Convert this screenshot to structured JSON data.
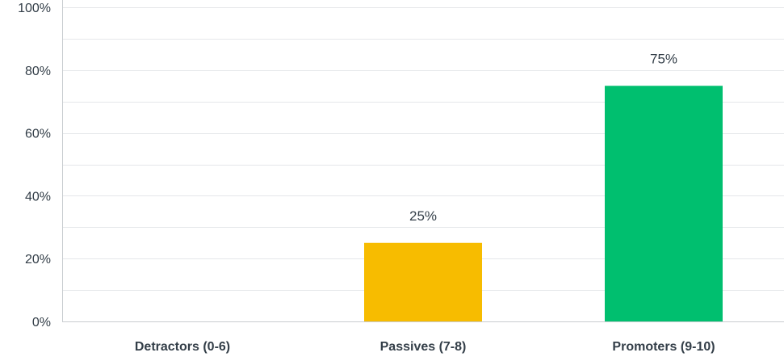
{
  "chart_data": {
    "type": "bar",
    "categories": [
      "Detractors (0-6)",
      "Passives (7-8)",
      "Promoters (9-10)"
    ],
    "values": [
      0,
      25,
      75
    ],
    "data_labels": [
      "",
      "25%",
      "75%"
    ],
    "colors": [
      "#d25f5f",
      "#f7bc00",
      "#00bf6f"
    ],
    "ylim": [
      0,
      100
    ],
    "yticks": [
      0,
      20,
      40,
      60,
      80,
      100
    ],
    "ytick_labels": [
      "0%",
      "20%",
      "40%",
      "60%",
      "80%",
      "100%"
    ],
    "grid": true,
    "gridline_color": "#e5e7ea",
    "axis_color": "#c8ccd0",
    "text_color": "#333e48",
    "title": "",
    "xlabel": "",
    "ylabel": ""
  }
}
